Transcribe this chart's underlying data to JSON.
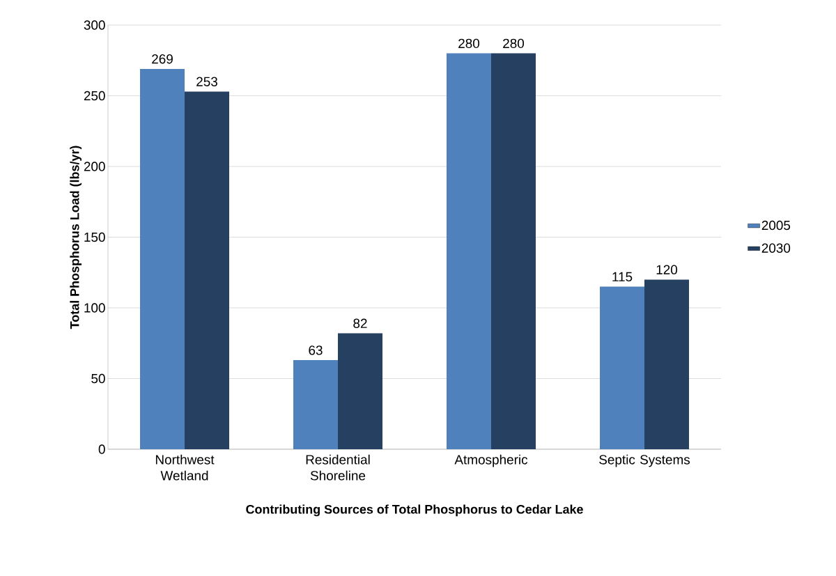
{
  "chart_data": {
    "type": "bar",
    "xlabel": "Contributing Sources of Total Phosphorus to Cedar Lake",
    "ylabel": "Total Phosphorus Load (lbs/yr)",
    "categories": [
      "Northwest Wetland",
      "Residential Shoreline",
      "Atmospheric",
      "Septic Systems"
    ],
    "series": [
      {
        "name": "2005",
        "color": "#4f81bd",
        "values": [
          269,
          63,
          280,
          115
        ]
      },
      {
        "name": "2030",
        "color": "#254061",
        "values": [
          253,
          82,
          280,
          120
        ]
      }
    ],
    "ylim": [
      0,
      300
    ],
    "yticks": [
      0,
      50,
      100,
      150,
      200,
      250,
      300
    ],
    "grid": "y",
    "legend": "right",
    "data_labels": true
  }
}
